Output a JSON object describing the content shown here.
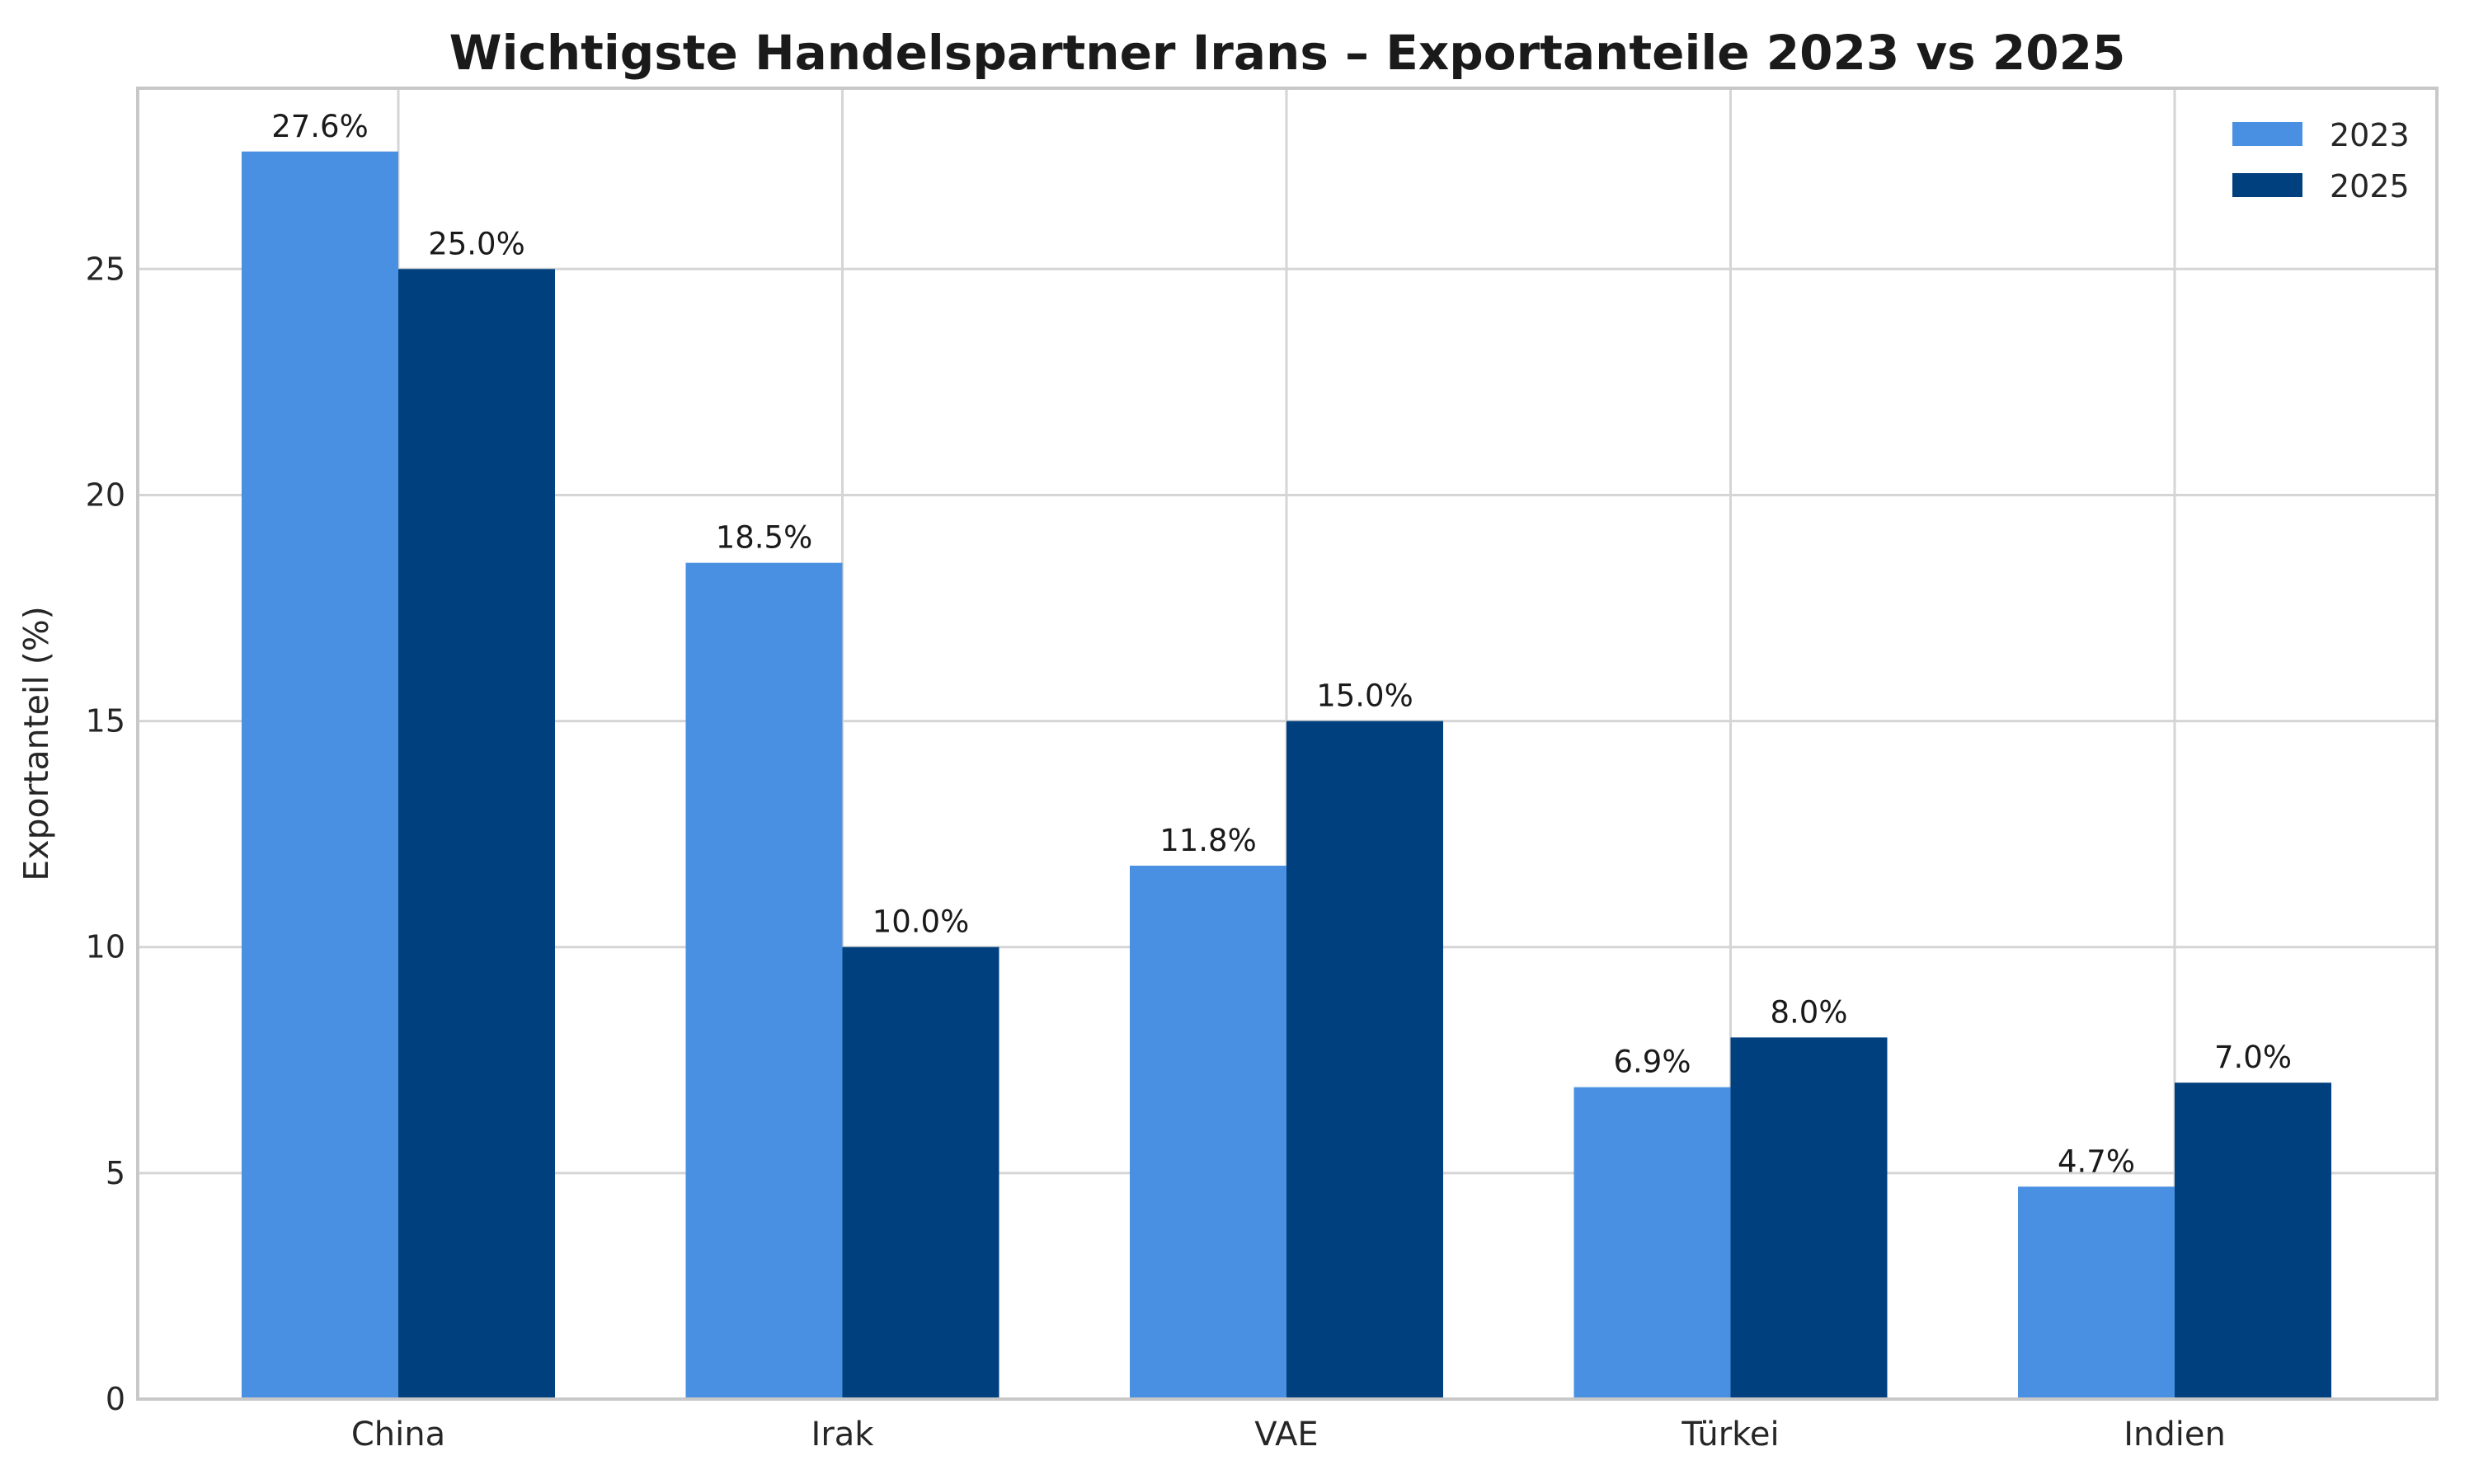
{
  "chart_data": {
    "type": "bar",
    "title": "Wichtigste Handelspartner Irans – Exportanteile 2023 vs 2025",
    "ylabel": "Exportanteil (%)",
    "xlabel": "",
    "categories": [
      "China",
      "Irak",
      "VAE",
      "Türkei",
      "Indien"
    ],
    "series": [
      {
        "name": "2023",
        "color": "#4a90e2",
        "values": [
          27.6,
          18.5,
          11.8,
          6.9,
          4.7
        ],
        "labels": [
          "27.6%",
          "18.5%",
          "11.8%",
          "6.9%",
          "4.7%"
        ]
      },
      {
        "name": "2025",
        "color": "#00407e",
        "values": [
          25.0,
          10.0,
          15.0,
          8.0,
          7.0
        ],
        "labels": [
          "25.0%",
          "10.0%",
          "15.0%",
          "8.0%",
          "7.0%"
        ]
      }
    ],
    "yticks": [
      0,
      5,
      10,
      15,
      20,
      25
    ],
    "ylim": [
      0,
      29
    ],
    "grid": "both",
    "grid_color": "#d5d5d5",
    "frame_color": "#c8c8c8",
    "legend_position": "upper right",
    "background": "#ffffff"
  }
}
